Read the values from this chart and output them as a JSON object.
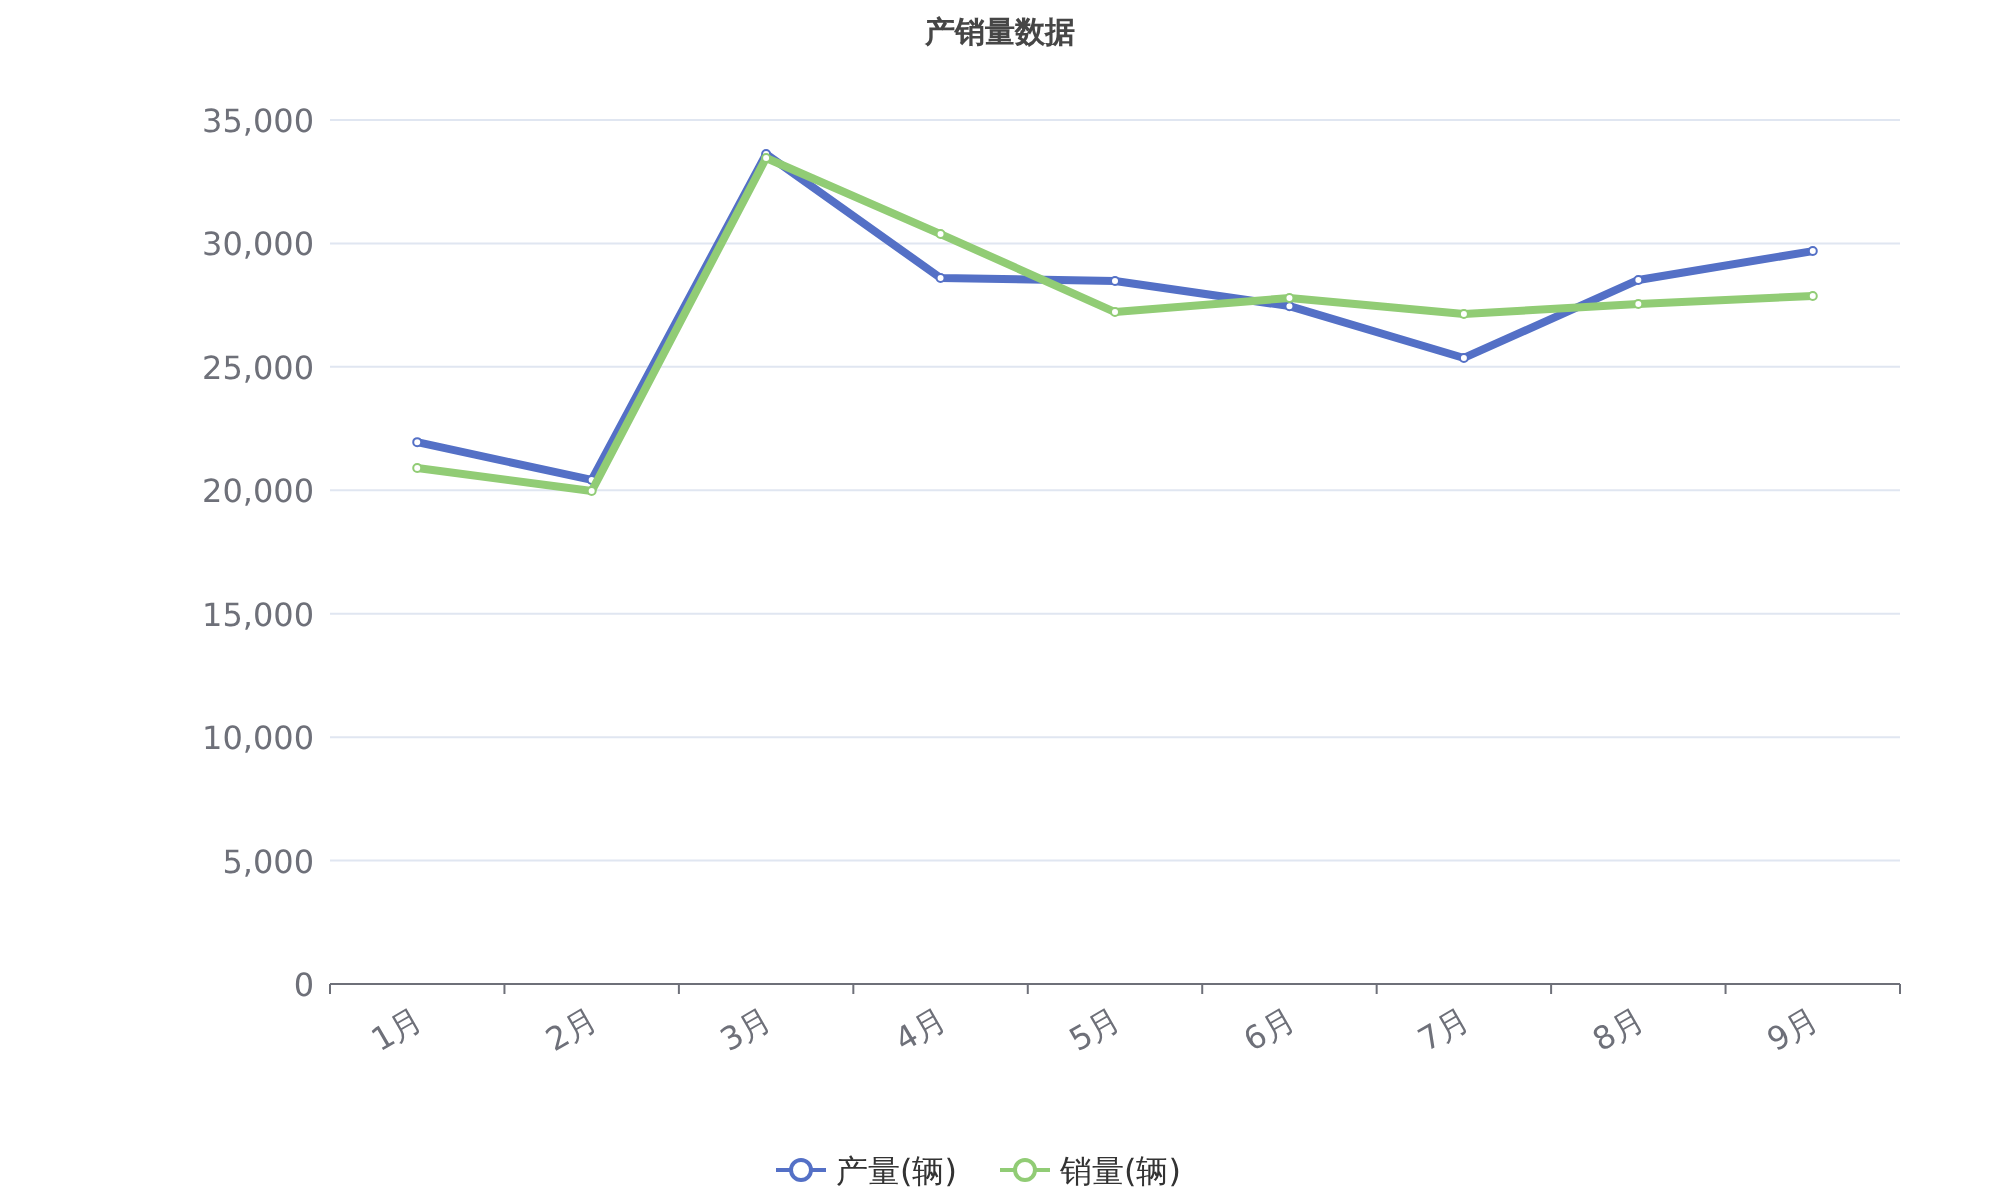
{
  "chart_data": {
    "type": "line",
    "title": "产销量数据",
    "categories": [
      "1月",
      "2月",
      "3月",
      "4月",
      "5月",
      "6月",
      "7月",
      "8月",
      "9月"
    ],
    "series": [
      {
        "name": "产量(辆)",
        "color": "#5470c6",
        "values": [
          21950,
          20420,
          33620,
          28600,
          28480,
          27460,
          25360,
          28520,
          29690
        ]
      },
      {
        "name": "销量(辆)",
        "color": "#91cc75",
        "values": [
          20900,
          19970,
          33460,
          30380,
          27220,
          27790,
          27140,
          27550,
          27870
        ]
      }
    ],
    "ylim": [
      0,
      35000
    ],
    "yticks": [
      {
        "value": 0,
        "label": "0"
      },
      {
        "value": 5000,
        "label": "5,000"
      },
      {
        "value": 10000,
        "label": "10,000"
      },
      {
        "value": 15000,
        "label": "15,000"
      },
      {
        "value": 20000,
        "label": "20,000"
      },
      {
        "value": 25000,
        "label": "25,000"
      },
      {
        "value": 30000,
        "label": "30,000"
      },
      {
        "value": 35000,
        "label": "35,000"
      }
    ],
    "grid": "y",
    "legend": "bottom",
    "marker": "circle",
    "line_style": "solid"
  }
}
